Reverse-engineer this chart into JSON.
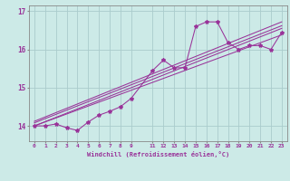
{
  "xlabel": "Windchill (Refroidissement éolien,°C)",
  "bg_color": "#cceae7",
  "line_color": "#993399",
  "grid_color": "#aacccc",
  "axis_color": "#888888",
  "xlim": [
    -0.5,
    23.5
  ],
  "ylim": [
    13.6,
    17.15
  ],
  "yticks": [
    14,
    15,
    16,
    17
  ],
  "xticks": [
    0,
    1,
    2,
    3,
    4,
    5,
    6,
    7,
    8,
    9,
    11,
    12,
    13,
    14,
    15,
    16,
    17,
    18,
    19,
    20,
    21,
    22,
    23
  ],
  "series": [
    [
      0,
      14.0
    ],
    [
      1,
      14.0
    ],
    [
      2,
      14.05
    ],
    [
      3,
      13.95
    ],
    [
      4,
      13.88
    ],
    [
      5,
      14.1
    ],
    [
      6,
      14.28
    ],
    [
      7,
      14.38
    ],
    [
      8,
      14.5
    ],
    [
      9,
      14.72
    ],
    [
      11,
      15.45
    ],
    [
      12,
      15.72
    ],
    [
      13,
      15.52
    ],
    [
      14,
      15.52
    ],
    [
      15,
      16.6
    ],
    [
      16,
      16.72
    ],
    [
      17,
      16.72
    ],
    [
      18,
      16.18
    ],
    [
      19,
      16.0
    ],
    [
      20,
      16.1
    ],
    [
      21,
      16.1
    ],
    [
      22,
      16.0
    ],
    [
      23,
      16.45
    ]
  ],
  "regression_lines": [
    {
      "x": [
        0,
        23
      ],
      "y": [
        14.0,
        16.55
      ]
    },
    {
      "x": [
        0,
        23
      ],
      "y": [
        14.08,
        16.62
      ]
    },
    {
      "x": [
        0,
        23
      ],
      "y": [
        14.0,
        16.38
      ]
    },
    {
      "x": [
        0,
        23
      ],
      "y": [
        14.12,
        16.72
      ]
    }
  ]
}
